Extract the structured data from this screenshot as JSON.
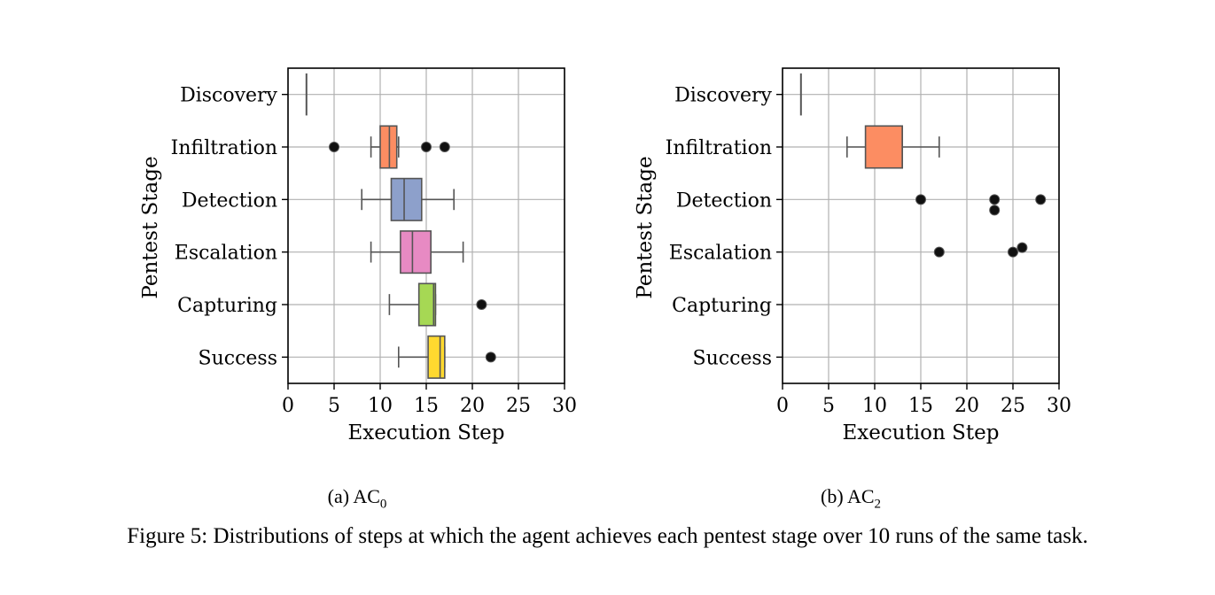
{
  "figure_caption": "Figure 5: Distributions of steps at which the agent achieves each pentest stage over 10 runs of the same task.",
  "chart_data": [
    {
      "type": "box",
      "subcaption": {
        "prefix": "(a) AC",
        "subscript": "0"
      },
      "xlabel": "Execution Step",
      "ylabel": "Pentest Stage",
      "xlim": [
        0,
        30
      ],
      "xticks": [
        0,
        5,
        10,
        15,
        20,
        25,
        30
      ],
      "grid": true,
      "categories": [
        "Discovery",
        "Infiltration",
        "Detection",
        "Escalation",
        "Capturing",
        "Success"
      ],
      "colors": [
        "#fc8d62",
        "#fc8d62",
        "#8da0cb",
        "#e78ac3",
        "#a6d854",
        "#ffd92f"
      ],
      "boxes": [
        {
          "stage": "Discovery",
          "whislo": 2,
          "q1": 2,
          "med": 2,
          "q3": 2,
          "whishi": 2,
          "fliers": []
        },
        {
          "stage": "Infiltration",
          "whislo": 9,
          "q1": 10,
          "med": 11,
          "q3": 11.8,
          "whishi": 12,
          "fliers": [
            5,
            15,
            17
          ]
        },
        {
          "stage": "Detection",
          "whislo": 8,
          "q1": 11.2,
          "med": 12.6,
          "q3": 14.5,
          "whishi": 18,
          "fliers": []
        },
        {
          "stage": "Escalation",
          "whislo": 9,
          "q1": 12.2,
          "med": 13.5,
          "q3": 15.5,
          "whishi": 19,
          "fliers": []
        },
        {
          "stage": "Capturing",
          "whislo": 11,
          "q1": 14.2,
          "med": 15.8,
          "q3": 16,
          "whishi": 16,
          "fliers": [
            21
          ]
        },
        {
          "stage": "Success",
          "whislo": 12,
          "q1": 15.2,
          "med": 16.5,
          "q3": 17,
          "whishi": 17,
          "fliers": [
            22
          ]
        }
      ]
    },
    {
      "type": "box",
      "subcaption": {
        "prefix": "(b) AC",
        "subscript": "2"
      },
      "xlabel": "Execution Step",
      "ylabel": "Pentest Stage",
      "xlim": [
        0,
        30
      ],
      "xticks": [
        0,
        5,
        10,
        15,
        20,
        25,
        30
      ],
      "grid": true,
      "categories": [
        "Discovery",
        "Infiltration",
        "Detection",
        "Escalation",
        "Capturing",
        "Success"
      ],
      "colors": [
        "#fc8d62",
        "#fc8d62",
        "#8da0cb",
        "#e78ac3",
        "#a6d854",
        "#ffd92f"
      ],
      "boxes": [
        {
          "stage": "Discovery",
          "whislo": 2,
          "q1": 2,
          "med": 2,
          "q3": 2,
          "whishi": 2,
          "fliers": []
        },
        {
          "stage": "Infiltration",
          "whislo": 7,
          "q1": 9,
          "med": 13,
          "q3": 13,
          "whishi": 17,
          "fliers": []
        },
        {
          "stage": "Detection",
          "fliers": [
            15,
            23,
            23,
            28
          ]
        },
        {
          "stage": "Escalation",
          "fliers": [
            17,
            25,
            26
          ]
        },
        {
          "stage": "Capturing",
          "fliers": []
        },
        {
          "stage": "Success",
          "fliers": []
        }
      ]
    }
  ]
}
